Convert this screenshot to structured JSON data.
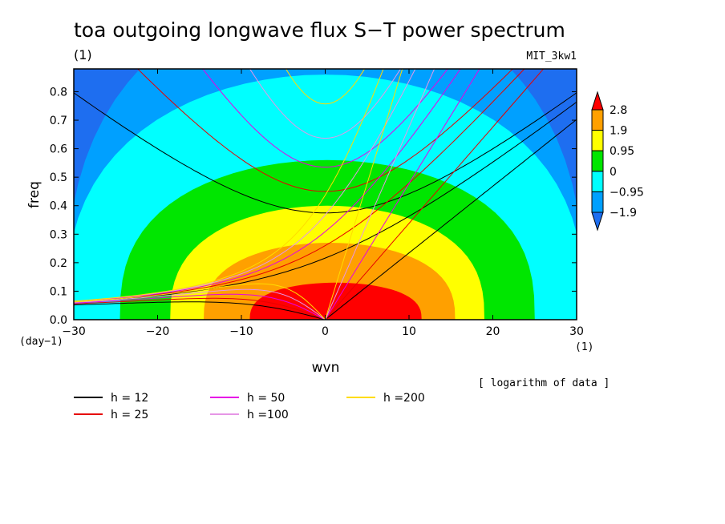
{
  "chart_data": {
    "type": "heatmap",
    "title": "toa outgoing longwave flux S−T power spectrum",
    "subtitle_left": "(1)",
    "subtitle_right": "MIT_3kw1",
    "xlabel": "wvn",
    "ylabel": "freq",
    "x_unit_label": "(1)",
    "y_unit_label": "(day−1)",
    "xlim": [
      -30,
      30
    ],
    "ylim": [
      0,
      0.88
    ],
    "xticks": [
      -30,
      -20,
      -10,
      0,
      10,
      20,
      30
    ],
    "xtick_labels": [
      "−30",
      "−20",
      "−10",
      "0",
      "10",
      "20",
      "30"
    ],
    "yticks": [
      0,
      0.1,
      0.2,
      0.3,
      0.4,
      0.5,
      0.6,
      0.7,
      0.8
    ],
    "ytick_labels": [
      "0.0",
      "0.1",
      "0.2",
      "0.3",
      "0.4",
      "0.5",
      "0.6",
      "0.7",
      "0.8"
    ],
    "note": "[ logarithm of data ]",
    "colorbar": {
      "levels": [
        -1.9,
        -0.95,
        0,
        0.95,
        1.9,
        2.8
      ],
      "labels": [
        "−1.9",
        "−0.95",
        "0",
        "0.95",
        "1.9",
        "2.8"
      ],
      "colors": [
        "#1e6ef0",
        "#00a0ff",
        "#00ffff",
        "#00e600",
        "#ffff00",
        "#ffa000",
        "#ff0000"
      ]
    },
    "dispersion_curves": [
      {
        "name": "h = 12",
        "h": 12,
        "color": "#000000"
      },
      {
        "name": "h = 25",
        "h": 25,
        "color": "#e60000"
      },
      {
        "name": "h = 50",
        "h": 50,
        "color": "#e600e6"
      },
      {
        "name": "h =100",
        "h": 100,
        "color": "#e696e6"
      },
      {
        "name": "h =200",
        "h": 200,
        "color": "#ffdc00"
      }
    ]
  }
}
